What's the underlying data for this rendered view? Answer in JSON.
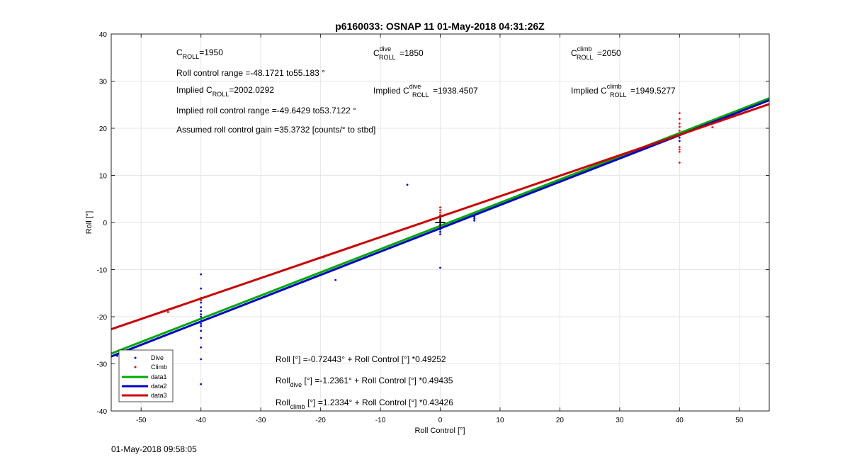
{
  "footer_timestamp": "01-May-2018 09:58:05",
  "chart_data": {
    "type": "scatter",
    "title": "p6160033: OSNAP 11 01-May-2018 04:31:26Z",
    "xlabel": "Roll Control [°]",
    "ylabel": "Roll [°]",
    "xlim": [
      -55,
      55
    ],
    "ylim": [
      -40,
      40
    ],
    "xticks": [
      -50,
      -40,
      -30,
      -20,
      -10,
      0,
      10,
      20,
      30,
      40,
      50
    ],
    "yticks": [
      -40,
      -30,
      -20,
      -10,
      0,
      10,
      20,
      30,
      40
    ],
    "grid": true,
    "legend_location": "bottom-left",
    "legend": [
      "Dive",
      "Climb",
      "data1",
      "data2",
      "data3"
    ],
    "colors": {
      "dive": "#0000ff",
      "climb": "#ff0000",
      "data1": "#00aa00",
      "data2": "#0000cc",
      "data3": "#cc0000",
      "grid": "#e6e6e6"
    },
    "series": [
      {
        "name": "Dive",
        "kind": "points",
        "color": "#0000ff",
        "points": [
          [
            -54,
            -28.3
          ],
          [
            -40,
            -11.0
          ],
          [
            -40,
            -14.0
          ],
          [
            -40,
            -16.0
          ],
          [
            -40,
            -17.0
          ],
          [
            -40,
            -18.0
          ],
          [
            -40,
            -18.8
          ],
          [
            -40,
            -19.5
          ],
          [
            -40,
            -20.0
          ],
          [
            -40,
            -20.5
          ],
          [
            -40,
            -21.0
          ],
          [
            -40,
            -21.5
          ],
          [
            -40,
            -22.0
          ],
          [
            -40,
            -23.0
          ],
          [
            -40,
            -24.5
          ],
          [
            -40,
            -26.5
          ],
          [
            -40,
            -29.0
          ],
          [
            -40,
            -34.3
          ],
          [
            -17.5,
            -12.2
          ],
          [
            -5.5,
            8.0
          ],
          [
            0,
            -9.6
          ],
          [
            0,
            -0.5
          ],
          [
            0,
            -1.0
          ],
          [
            0,
            -1.5
          ],
          [
            0,
            -2.0
          ],
          [
            0,
            -2.5
          ],
          [
            0,
            0.3
          ],
          [
            5.7,
            0.4
          ],
          [
            5.7,
            0.8
          ],
          [
            5.7,
            1.2
          ],
          [
            40,
            17.3
          ],
          [
            40,
            18.0
          ],
          [
            40,
            18.5
          ]
        ]
      },
      {
        "name": "Climb",
        "kind": "points",
        "color": "#ff0000",
        "points": [
          [
            -45.5,
            -18.5
          ],
          [
            -45.5,
            -19.0
          ],
          [
            -40,
            -16.0
          ],
          [
            -40,
            -16.5
          ],
          [
            -19.5,
            -7.4
          ],
          [
            -5.5,
            -1.2
          ],
          [
            0,
            3.2
          ],
          [
            0,
            2.6
          ],
          [
            0,
            2.1
          ],
          [
            0,
            1.6
          ],
          [
            0,
            1.1
          ],
          [
            0,
            0.6
          ],
          [
            0,
            0.0
          ],
          [
            0,
            -0.8
          ],
          [
            40,
            23.2
          ],
          [
            40,
            22.0
          ],
          [
            40,
            21.0
          ],
          [
            40,
            20.3
          ],
          [
            40,
            19.5
          ],
          [
            40,
            19.0
          ],
          [
            40,
            18.5
          ],
          [
            40,
            16.0
          ],
          [
            40,
            15.5
          ],
          [
            40,
            15.0
          ],
          [
            40,
            12.7
          ],
          [
            45.5,
            20.2
          ]
        ]
      },
      {
        "name": "data1",
        "kind": "line",
        "color": "#00aa00",
        "x": [
          -55,
          55
        ],
        "y": [
          -27.81,
          26.36
        ]
      },
      {
        "name": "data2",
        "kind": "line",
        "color": "#0000cc",
        "x": [
          -55,
          55
        ],
        "y": [
          -28.43,
          25.95
        ]
      },
      {
        "name": "data3",
        "kind": "line",
        "color": "#cc0000",
        "x": [
          -55,
          55
        ],
        "y": [
          -22.65,
          25.12
        ]
      }
    ],
    "marker": {
      "x": 0,
      "y": 0,
      "symbol": "+"
    },
    "annotations": {
      "c_roll_value": "=1950",
      "c_dive_value": "=1850",
      "c_climb_value": "=2050",
      "roll_range": "Roll control range =-48.1721 to55.183 °",
      "implied_c_roll_prefix": "Implied C",
      "implied_c_roll_value": "=2002.0292",
      "implied_c_dive_value": "=1938.4507",
      "implied_c_climb_value": "=1949.5277",
      "implied_range": "Implied roll control range =-49.6429 to53.7122 °",
      "gain": "Assumed roll control gain =35.3732 [counts/° to stbd]",
      "C": "C",
      "sub_roll": "ROLL",
      "sup_dive": "dive",
      "sup_climb": "climb",
      "roll_unit_prefix": "Roll [°] =",
      "roll_prefix": "Roll",
      "sub_dive": "dive",
      "sub_climb": "climb",
      "fit_all": "-0.72443° + Roll Control [°] *0.49252",
      "fit_dive": " [°] =-1.2361° + Roll Control [°] *0.49435",
      "fit_climb": " [°] =1.2334° + Roll Control [°] *0.43426"
    }
  }
}
